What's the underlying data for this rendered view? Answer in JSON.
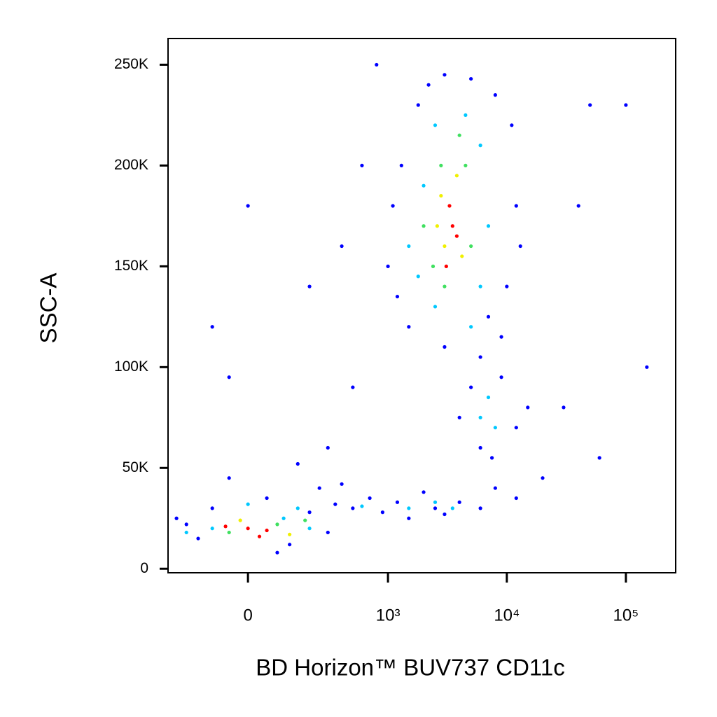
{
  "chart_data": {
    "type": "scatter",
    "x_label": "BD Horizon™ BUV737 CD11c",
    "y_label": "SSC-A",
    "xscale": "biexponential",
    "xlim": [
      -300,
      262000
    ],
    "ylim": [
      -2000,
      263000
    ],
    "xticks": [
      0,
      {
        "value": 1000,
        "label": "10³"
      },
      {
        "value": 10000,
        "label": "10⁴"
      },
      {
        "value": 100000,
        "label": "10⁵"
      }
    ],
    "yticks": [
      0,
      {
        "value": 50000,
        "label": "50K"
      },
      {
        "value": 100000,
        "label": "100K"
      },
      {
        "value": 150000,
        "label": "150K"
      },
      {
        "value": 200000,
        "label": "200K"
      },
      {
        "value": 250000,
        "label": "250K"
      }
    ],
    "series": [
      {
        "color": "#0000ff",
        "x": [
          -150,
          -100,
          50,
          200,
          -200,
          120,
          300,
          250,
          -50,
          80,
          -250,
          350,
          150,
          500,
          700,
          900,
          1200,
          1500,
          2000,
          2500,
          3000,
          4000,
          6000,
          8000,
          12000,
          400,
          1000,
          1100,
          1300,
          1500,
          1800,
          2200,
          3000,
          5000,
          8000,
          11000,
          12000,
          10000,
          9000,
          6000,
          3000,
          1200,
          13000,
          7000,
          5000,
          6000,
          7500,
          9000,
          12000,
          15000,
          4000,
          -100,
          0,
          200,
          400,
          600,
          50000,
          100000,
          40000,
          30000,
          60000,
          150000,
          20000,
          500,
          300,
          -50,
          800
        ],
        "y": [
          15000,
          30000,
          35000,
          28000,
          22000,
          12000,
          18000,
          40000,
          45000,
          8000,
          25000,
          32000,
          52000,
          30000,
          35000,
          28000,
          33000,
          25000,
          38000,
          30000,
          27000,
          33000,
          30000,
          40000,
          35000,
          42000,
          150000,
          180000,
          200000,
          120000,
          230000,
          240000,
          245000,
          243000,
          235000,
          220000,
          180000,
          140000,
          115000,
          105000,
          110000,
          135000,
          160000,
          125000,
          90000,
          60000,
          55000,
          95000,
          70000,
          80000,
          75000,
          120000,
          180000,
          140000,
          160000,
          200000,
          230000,
          230000,
          180000,
          80000,
          55000,
          100000,
          45000,
          90000,
          60000,
          95000,
          250000
        ]
      },
      {
        "color": "#00c8ff",
        "x": [
          -100,
          100,
          200,
          -200,
          0,
          150,
          1500,
          2500,
          3500,
          600,
          1500,
          2000,
          2500,
          4500,
          6000,
          7000,
          6000,
          2500,
          1800,
          5000,
          6000,
          7000,
          8000
        ],
        "y": [
          20000,
          25000,
          20000,
          18000,
          32000,
          30000,
          30000,
          33000,
          30000,
          31000,
          160000,
          190000,
          220000,
          225000,
          210000,
          170000,
          140000,
          130000,
          145000,
          120000,
          75000,
          85000,
          70000
        ]
      },
      {
        "color": "#40e060",
        "x": [
          -50,
          80,
          180,
          2000,
          2800,
          4500,
          5000,
          3000,
          2400,
          4000
        ],
        "y": [
          18000,
          22000,
          24000,
          170000,
          200000,
          200000,
          160000,
          140000,
          150000,
          215000
        ]
      },
      {
        "color": "#f0f000",
        "x": [
          -20,
          120,
          2800,
          3800,
          4200,
          3000,
          2600
        ],
        "y": [
          24000,
          17000,
          185000,
          195000,
          155000,
          160000,
          170000
        ]
      },
      {
        "color": "#ff0000",
        "x": [
          0,
          50,
          -60,
          30,
          3500,
          3300,
          3800,
          3100
        ],
        "y": [
          20000,
          19000,
          21000,
          16000,
          170000,
          180000,
          165000,
          150000
        ]
      }
    ]
  }
}
